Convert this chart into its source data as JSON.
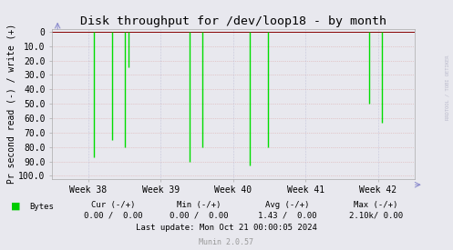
{
  "title": "Disk throughput for /dev/loop18 - by month",
  "ylabel": "Pr second read (-) / write (+)",
  "ylim": [
    -102,
    2
  ],
  "yticks": [
    0,
    -10,
    -20,
    -30,
    -40,
    -50,
    -60,
    -70,
    -80,
    -90,
    -100
  ],
  "ytick_labels": [
    "0",
    "10.0",
    "20.0",
    "30.0",
    "40.0",
    "50.0",
    "60.0",
    "70.0",
    "80.0",
    "90.0",
    "00.0"
  ],
  "xtick_labels": [
    "Week 38",
    "Week 39",
    "Week 40",
    "Week 41",
    "Week 42"
  ],
  "background_color": "#e8e8ee",
  "plot_bg_color": "#e8e8ee",
  "grid_color_h": "#ddaaaa",
  "grid_color_v": "#aaaacc",
  "line_color": "#00dd00",
  "border_color": "#aaaaaa",
  "zero_line_color": "#880000",
  "legend_label": "Bytes",
  "legend_color": "#00cc00",
  "footer_last_update": "Last update: Mon Oct 21 00:00:05 2024",
  "footer_munin": "Munin 2.0.57",
  "rrdtool_text": "RRDTOOL / TOBI OETIKER",
  "spike_x": [
    0.115,
    0.165,
    0.2,
    0.21,
    0.38,
    0.415,
    0.545,
    0.595,
    0.875,
    0.91
  ],
  "spike_y": [
    -87,
    -75,
    -80,
    -25,
    -90,
    -80,
    -93,
    -80,
    -50,
    -63
  ],
  "title_fontsize": 9.5,
  "axis_fontsize": 7,
  "tick_fontsize": 7,
  "footer_fontsize": 6.5,
  "munin_fontsize": 6
}
